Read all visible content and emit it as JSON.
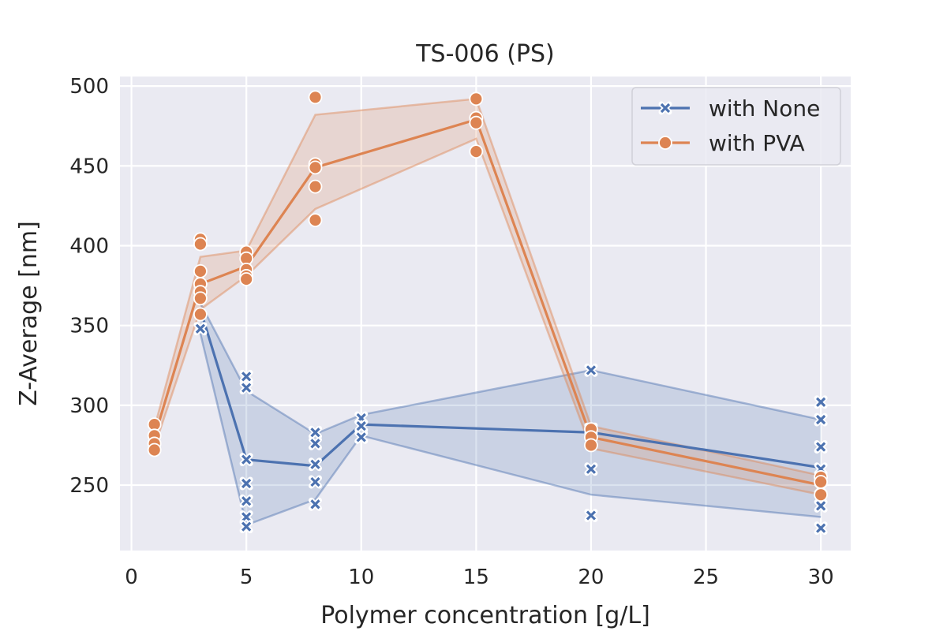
{
  "chart_data": {
    "type": "line",
    "title": "TS-006 (PS)",
    "xlabel": "Polymer concentration [g/L]",
    "ylabel": "Z-Average [nm]",
    "xlim": [
      -0.5,
      31.3
    ],
    "ylim": [
      209,
      506
    ],
    "xticks": [
      0,
      5,
      10,
      15,
      20,
      25,
      30
    ],
    "yticks": [
      250,
      300,
      350,
      400,
      450,
      500
    ],
    "grid": true,
    "background": "#eaeaf2",
    "legend_position": "top-right",
    "series": [
      {
        "name": "with None",
        "color": "#4c72b0",
        "marker": "x",
        "mean": [
          {
            "x": 3,
            "y": 360
          },
          {
            "x": 5,
            "y": 266
          },
          {
            "x": 8,
            "y": 262
          },
          {
            "x": 10,
            "y": 288
          },
          {
            "x": 20,
            "y": 283
          },
          {
            "x": 30,
            "y": 261
          }
        ],
        "band": [
          {
            "x": 3,
            "lo": 345,
            "hi": 364
          },
          {
            "x": 5,
            "lo": 225,
            "hi": 309
          },
          {
            "x": 8,
            "lo": 241,
            "hi": 282
          },
          {
            "x": 10,
            "lo": 281,
            "hi": 294
          },
          {
            "x": 20,
            "lo": 244,
            "hi": 322
          },
          {
            "x": 30,
            "lo": 230,
            "hi": 291
          }
        ],
        "points": [
          {
            "x": 3,
            "y": 348
          },
          {
            "x": 5,
            "y": 318
          },
          {
            "x": 5,
            "y": 311
          },
          {
            "x": 5,
            "y": 266
          },
          {
            "x": 5,
            "y": 251
          },
          {
            "x": 5,
            "y": 240
          },
          {
            "x": 5,
            "y": 230
          },
          {
            "x": 5,
            "y": 224
          },
          {
            "x": 8,
            "y": 283
          },
          {
            "x": 8,
            "y": 276
          },
          {
            "x": 8,
            "y": 263
          },
          {
            "x": 8,
            "y": 252
          },
          {
            "x": 8,
            "y": 238
          },
          {
            "x": 10,
            "y": 292
          },
          {
            "x": 10,
            "y": 287
          },
          {
            "x": 10,
            "y": 280
          },
          {
            "x": 20,
            "y": 322
          },
          {
            "x": 20,
            "y": 285
          },
          {
            "x": 20,
            "y": 260
          },
          {
            "x": 20,
            "y": 231
          },
          {
            "x": 30,
            "y": 302
          },
          {
            "x": 30,
            "y": 291
          },
          {
            "x": 30,
            "y": 274
          },
          {
            "x": 30,
            "y": 260
          },
          {
            "x": 30,
            "y": 248
          },
          {
            "x": 30,
            "y": 237
          },
          {
            "x": 30,
            "y": 223
          }
        ]
      },
      {
        "name": "with PVA",
        "color": "#dd8452",
        "marker": "o",
        "mean": [
          {
            "x": 1,
            "y": 280
          },
          {
            "x": 3,
            "y": 376
          },
          {
            "x": 5,
            "y": 387
          },
          {
            "x": 8,
            "y": 449
          },
          {
            "x": 15,
            "y": 479
          },
          {
            "x": 20,
            "y": 280
          },
          {
            "x": 30,
            "y": 250
          }
        ],
        "band": [
          {
            "x": 1,
            "lo": 274,
            "hi": 286
          },
          {
            "x": 3,
            "lo": 360,
            "hi": 393
          },
          {
            "x": 5,
            "lo": 381,
            "hi": 397
          },
          {
            "x": 8,
            "lo": 423,
            "hi": 482
          },
          {
            "x": 15,
            "lo": 467,
            "hi": 492
          },
          {
            "x": 20,
            "lo": 273,
            "hi": 287
          },
          {
            "x": 30,
            "lo": 244,
            "hi": 256
          }
        ],
        "points": [
          {
            "x": 1,
            "y": 288
          },
          {
            "x": 1,
            "y": 281
          },
          {
            "x": 1,
            "y": 276
          },
          {
            "x": 1,
            "y": 272
          },
          {
            "x": 3,
            "y": 404
          },
          {
            "x": 3,
            "y": 401
          },
          {
            "x": 3,
            "y": 384
          },
          {
            "x": 3,
            "y": 376
          },
          {
            "x": 3,
            "y": 371
          },
          {
            "x": 3,
            "y": 367
          },
          {
            "x": 3,
            "y": 357
          },
          {
            "x": 5,
            "y": 396
          },
          {
            "x": 5,
            "y": 392
          },
          {
            "x": 5,
            "y": 385
          },
          {
            "x": 5,
            "y": 381
          },
          {
            "x": 5,
            "y": 379
          },
          {
            "x": 8,
            "y": 493
          },
          {
            "x": 8,
            "y": 451
          },
          {
            "x": 8,
            "y": 449
          },
          {
            "x": 8,
            "y": 437
          },
          {
            "x": 8,
            "y": 416
          },
          {
            "x": 15,
            "y": 492
          },
          {
            "x": 15,
            "y": 480
          },
          {
            "x": 15,
            "y": 477
          },
          {
            "x": 15,
            "y": 459
          },
          {
            "x": 20,
            "y": 285
          },
          {
            "x": 20,
            "y": 280
          },
          {
            "x": 20,
            "y": 275
          },
          {
            "x": 30,
            "y": 255
          },
          {
            "x": 30,
            "y": 252
          },
          {
            "x": 30,
            "y": 244
          }
        ]
      }
    ]
  }
}
